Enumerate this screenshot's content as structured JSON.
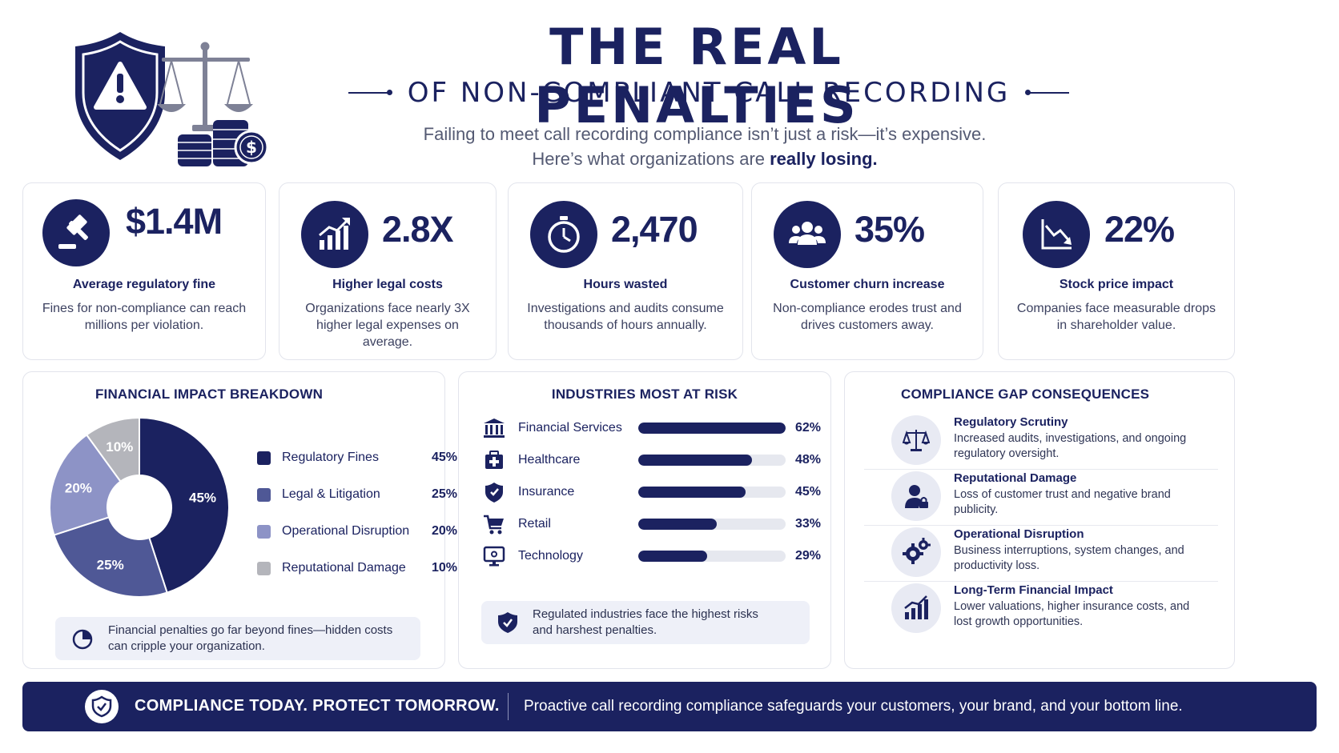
{
  "header": {
    "title": "THE REAL PENALTIES",
    "subtitle": "OF NON-COMPLIANT CALL RECORDING",
    "intro_line1": "Failing to meet call recording compliance isn’t just a risk—it’s expensive.",
    "intro_line2_prefix": "Here’s what organizations are",
    "intro_line2_emphasis": "really losing.",
    "illustration_icons": [
      "shield-warning-icon",
      "scales-icon",
      "coins-icon",
      "dollar-icon"
    ]
  },
  "stats": [
    {
      "icon": "gavel-icon",
      "value": "$1.4M",
      "label": "Average regulatory fine",
      "desc": "Fines for non-compliance can reach millions per violation."
    },
    {
      "icon": "chart-up-icon",
      "value": "2.8X",
      "label": "Higher legal costs",
      "desc": "Organizations face nearly 3X higher legal expenses on average."
    },
    {
      "icon": "stopwatch-icon",
      "value": "2,470",
      "label": "Hours wasted",
      "desc": "Investigations and audits consume thousands of hours annually."
    },
    {
      "icon": "people-icon",
      "value": "35%",
      "label": "Customer churn increase",
      "desc": "Non-compliance erodes trust and drives customers away."
    },
    {
      "icon": "chart-down-icon",
      "value": "22%",
      "label": "Stock price impact",
      "desc": "Companies face measurable drops in shareholder value."
    }
  ],
  "financial": {
    "title": "FINANCIAL IMPACT BREAKDOWN",
    "chart_data": {
      "type": "pie",
      "categories": [
        "Regulatory Fines",
        "Legal & Litigation",
        "Operational Disruption",
        "Reputational Damage"
      ],
      "values": [
        45,
        25,
        20,
        10
      ],
      "value_labels": [
        "45%",
        "25%",
        "20%",
        "10%"
      ],
      "colors": [
        "#1b2260",
        "#4f5896",
        "#8d93c6",
        "#b4b5bb"
      ],
      "legend": "right"
    },
    "note": "Financial penalties go far beyond fines—hidden costs can cripple your organization."
  },
  "industries": {
    "title": "INDUSTRIES MOST AT RISK",
    "chart_data": {
      "type": "bar",
      "orientation": "horizontal",
      "categories": [
        "Financial Services",
        "Healthcare",
        "Insurance",
        "Retail",
        "Technology"
      ],
      "values": [
        62,
        48,
        45,
        33,
        29
      ],
      "value_labels": [
        "62%",
        "48%",
        "45%",
        "33%",
        "29%"
      ],
      "icons": [
        "bank-icon",
        "medical-kit-icon",
        "shield-icon",
        "cart-icon",
        "monitor-icon"
      ],
      "xlim": [
        0,
        62
      ]
    },
    "note": "Regulated industries face the highest risks and harshest penalties."
  },
  "consequences": {
    "title": "COMPLIANCE GAP CONSEQUENCES",
    "items": [
      {
        "icon": "scales-icon",
        "title": "Regulatory Scrutiny",
        "desc": "Increased audits, investigations, and ongoing regulatory oversight."
      },
      {
        "icon": "person-lock-icon",
        "title": "Reputational Damage",
        "desc": "Loss of customer trust and negative brand publicity."
      },
      {
        "icon": "gears-icon",
        "title": "Operational Disruption",
        "desc": "Business interruptions, system changes, and productivity loss."
      },
      {
        "icon": "bar-chart-icon",
        "title": "Long-Term Financial Impact",
        "desc": "Lower valuations, higher insurance costs, and lost growth opportunities."
      }
    ]
  },
  "banner": {
    "headline": "COMPLIANCE TODAY. PROTECT TOMORROW.",
    "text": "Proactive call recording compliance safeguards your customers, your brand, and your bottom line."
  },
  "colors": {
    "navy": "#1b2260",
    "mid": "#4f5896",
    "light": "#8d93c6",
    "gray": "#b4b5bb",
    "track": "#e6e8ef"
  }
}
